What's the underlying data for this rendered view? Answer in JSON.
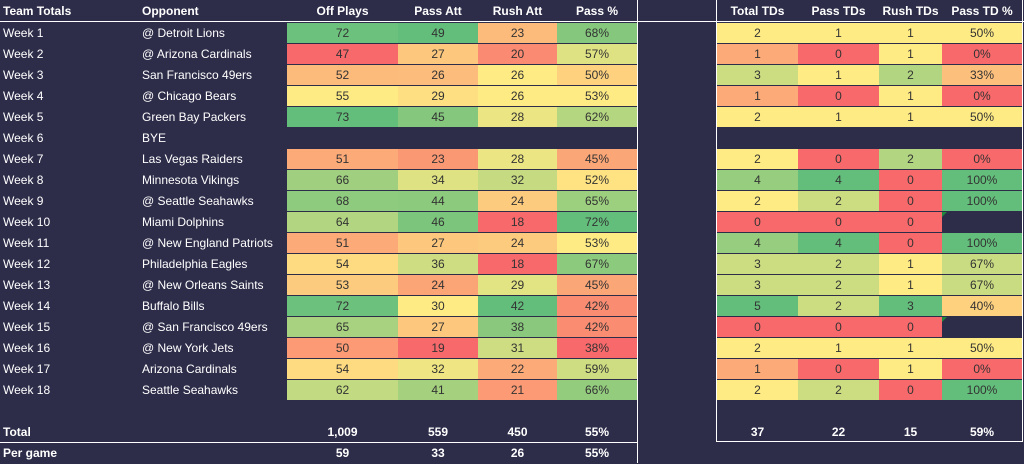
{
  "headers": {
    "label": "Team Totals",
    "opponent": "Opponent",
    "off_plays": "Off Plays",
    "pass_att": "Pass Att",
    "rush_att": "Rush Att",
    "pass_pct": "Pass %",
    "total_tds": "Total TDs",
    "pass_tds": "Pass TDs",
    "rush_tds": "Rush TDs",
    "pass_td_pct": "Pass TD %"
  },
  "colors": {
    "background": "#2d2d4a",
    "green": "#63be7b",
    "yellow": "#ffeb84",
    "red": "#f8696b"
  },
  "weeks": [
    {
      "week": "Week 1",
      "opponent": "@ Detroit Lions",
      "off_plays": "72",
      "pass_att": "49",
      "rush_att": "23",
      "pass_pct": "68%",
      "total_tds": "2",
      "pass_tds": "1",
      "rush_tds": "1",
      "pass_td_pct": "50%"
    },
    {
      "week": "Week 2",
      "opponent": "@ Arizona Cardinals",
      "off_plays": "47",
      "pass_att": "27",
      "rush_att": "20",
      "pass_pct": "57%",
      "total_tds": "1",
      "pass_tds": "0",
      "rush_tds": "1",
      "pass_td_pct": "0%"
    },
    {
      "week": "Week 3",
      "opponent": "San Francisco 49ers",
      "off_plays": "52",
      "pass_att": "26",
      "rush_att": "26",
      "pass_pct": "50%",
      "total_tds": "3",
      "pass_tds": "1",
      "rush_tds": "2",
      "pass_td_pct": "33%"
    },
    {
      "week": "Week 4",
      "opponent": "@ Chicago Bears",
      "off_plays": "55",
      "pass_att": "29",
      "rush_att": "26",
      "pass_pct": "53%",
      "total_tds": "1",
      "pass_tds": "0",
      "rush_tds": "1",
      "pass_td_pct": "0%"
    },
    {
      "week": "Week 5",
      "opponent": "Green Bay Packers",
      "off_plays": "73",
      "pass_att": "45",
      "rush_att": "28",
      "pass_pct": "62%",
      "total_tds": "2",
      "pass_tds": "1",
      "rush_tds": "1",
      "pass_td_pct": "50%"
    },
    {
      "week": "Week 6",
      "opponent": "BYE",
      "bye": true
    },
    {
      "week": "Week 7",
      "opponent": "Las Vegas Raiders",
      "off_plays": "51",
      "pass_att": "23",
      "rush_att": "28",
      "pass_pct": "45%",
      "total_tds": "2",
      "pass_tds": "0",
      "rush_tds": "2",
      "pass_td_pct": "0%"
    },
    {
      "week": "Week 8",
      "opponent": "Minnesota Vikings",
      "off_plays": "66",
      "pass_att": "34",
      "rush_att": "32",
      "pass_pct": "52%",
      "total_tds": "4",
      "pass_tds": "4",
      "rush_tds": "0",
      "pass_td_pct": "100%"
    },
    {
      "week": "Week 9",
      "opponent": "@ Seattle Seahawks",
      "off_plays": "68",
      "pass_att": "44",
      "rush_att": "24",
      "pass_pct": "65%",
      "total_tds": "2",
      "pass_tds": "2",
      "rush_tds": "0",
      "pass_td_pct": "100%"
    },
    {
      "week": "Week 10",
      "opponent": "Miami Dolphins",
      "off_plays": "64",
      "pass_att": "46",
      "rush_att": "18",
      "pass_pct": "72%",
      "total_tds": "0",
      "pass_tds": "0",
      "rush_tds": "0",
      "pass_td_pct": ""
    },
    {
      "week": "Week 11",
      "opponent": "@ New England Patriots",
      "off_plays": "51",
      "pass_att": "27",
      "rush_att": "24",
      "pass_pct": "53%",
      "total_tds": "4",
      "pass_tds": "4",
      "rush_tds": "0",
      "pass_td_pct": "100%"
    },
    {
      "week": "Week 12",
      "opponent": "Philadelphia Eagles",
      "off_plays": "54",
      "pass_att": "36",
      "rush_att": "18",
      "pass_pct": "67%",
      "total_tds": "3",
      "pass_tds": "2",
      "rush_tds": "1",
      "pass_td_pct": "67%"
    },
    {
      "week": "Week 13",
      "opponent": "@ New Orleans Saints",
      "off_plays": "53",
      "pass_att": "24",
      "rush_att": "29",
      "pass_pct": "45%",
      "total_tds": "3",
      "pass_tds": "2",
      "rush_tds": "1",
      "pass_td_pct": "67%"
    },
    {
      "week": "Week 14",
      "opponent": "Buffalo Bills",
      "off_plays": "72",
      "pass_att": "30",
      "rush_att": "42",
      "pass_pct": "42%",
      "total_tds": "5",
      "pass_tds": "2",
      "rush_tds": "3",
      "pass_td_pct": "40%"
    },
    {
      "week": "Week 15",
      "opponent": "@ San Francisco 49ers",
      "off_plays": "65",
      "pass_att": "27",
      "rush_att": "38",
      "pass_pct": "42%",
      "total_tds": "0",
      "pass_tds": "0",
      "rush_tds": "0",
      "pass_td_pct": ""
    },
    {
      "week": "Week 16",
      "opponent": "@ New York Jets",
      "off_plays": "50",
      "pass_att": "19",
      "rush_att": "31",
      "pass_pct": "38%",
      "total_tds": "2",
      "pass_tds": "1",
      "rush_tds": "1",
      "pass_td_pct": "50%"
    },
    {
      "week": "Week 17",
      "opponent": "Arizona Cardinals",
      "off_plays": "54",
      "pass_att": "32",
      "rush_att": "22",
      "pass_pct": "59%",
      "total_tds": "1",
      "pass_tds": "0",
      "rush_tds": "1",
      "pass_td_pct": "0%"
    },
    {
      "week": "Week 18",
      "opponent": "Seattle Seahawks",
      "off_plays": "62",
      "pass_att": "41",
      "rush_att": "21",
      "pass_pct": "66%",
      "total_tds": "2",
      "pass_tds": "2",
      "rush_tds": "0",
      "pass_td_pct": "100%"
    }
  ],
  "total": {
    "label": "Total",
    "off_plays": "1,009",
    "pass_att": "559",
    "rush_att": "450",
    "pass_pct": "55%",
    "total_tds": "37",
    "pass_tds": "22",
    "rush_tds": "15",
    "pass_td_pct": "59%"
  },
  "per_game": {
    "label": "Per game",
    "off_plays": "59",
    "pass_att": "33",
    "rush_att": "26",
    "pass_pct": "55%"
  }
}
